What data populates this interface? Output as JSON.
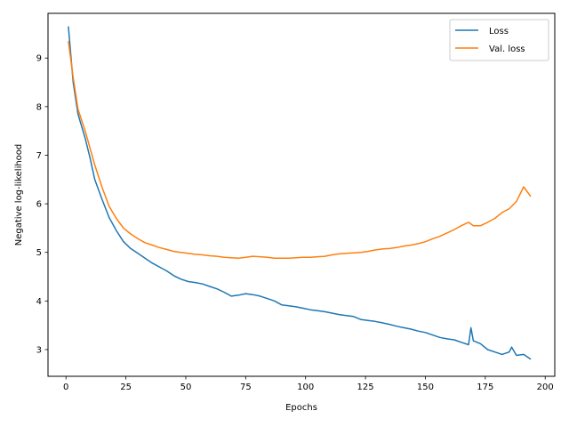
{
  "chart_data": {
    "type": "line",
    "title": "",
    "xlabel": "Epochs",
    "ylabel": "Negative log-likelihood",
    "xlim": [
      -7.5,
      204
    ],
    "ylim": [
      2.45,
      9.92
    ],
    "xticks": [
      0,
      25,
      50,
      75,
      100,
      125,
      150,
      175,
      200
    ],
    "yticks": [
      3,
      4,
      5,
      6,
      7,
      8,
      9
    ],
    "grid": false,
    "legend_position": "top-right",
    "series": [
      {
        "name": "Loss",
        "color": "#1f77b4",
        "x": [
          1,
          3,
          5,
          8,
          10,
          12,
          15,
          18,
          21,
          24,
          27,
          30,
          33,
          36,
          39,
          42,
          45,
          48,
          51,
          54,
          57,
          60,
          63,
          66,
          69,
          72,
          75,
          78,
          81,
          84,
          87,
          90,
          93,
          96,
          99,
          102,
          105,
          108,
          111,
          114,
          117,
          120,
          123,
          126,
          129,
          132,
          135,
          138,
          141,
          144,
          147,
          150,
          153,
          156,
          159,
          162,
          165,
          168,
          169,
          170,
          173,
          176,
          179,
          182,
          185,
          186,
          188,
          191,
          194
        ],
        "y": [
          9.65,
          8.5,
          7.85,
          7.35,
          6.95,
          6.5,
          6.1,
          5.72,
          5.45,
          5.22,
          5.08,
          4.98,
          4.88,
          4.78,
          4.7,
          4.62,
          4.52,
          4.45,
          4.4,
          4.38,
          4.35,
          4.3,
          4.25,
          4.18,
          4.1,
          4.12,
          4.15,
          4.13,
          4.1,
          4.05,
          4.0,
          3.92,
          3.9,
          3.88,
          3.85,
          3.82,
          3.8,
          3.78,
          3.75,
          3.72,
          3.7,
          3.68,
          3.62,
          3.6,
          3.58,
          3.55,
          3.52,
          3.48,
          3.45,
          3.42,
          3.38,
          3.35,
          3.3,
          3.25,
          3.22,
          3.2,
          3.15,
          3.1,
          3.45,
          3.18,
          3.12,
          3.0,
          2.95,
          2.9,
          2.95,
          3.05,
          2.88,
          2.9,
          2.8
        ]
      },
      {
        "name": "Val. loss",
        "color": "#ff7f0e",
        "x": [
          1,
          3,
          5,
          8,
          10,
          12,
          15,
          18,
          21,
          24,
          27,
          30,
          33,
          36,
          39,
          42,
          45,
          48,
          51,
          54,
          57,
          60,
          63,
          66,
          69,
          72,
          75,
          78,
          81,
          84,
          87,
          90,
          93,
          96,
          99,
          102,
          105,
          108,
          111,
          114,
          117,
          120,
          123,
          126,
          129,
          132,
          135,
          138,
          141,
          144,
          147,
          150,
          153,
          156,
          159,
          162,
          165,
          168,
          170,
          173,
          176,
          179,
          182,
          185,
          188,
          191,
          194
        ],
        "y": [
          9.35,
          8.6,
          7.95,
          7.5,
          7.15,
          6.8,
          6.35,
          5.95,
          5.7,
          5.5,
          5.38,
          5.28,
          5.2,
          5.15,
          5.1,
          5.06,
          5.02,
          5.0,
          4.98,
          4.96,
          4.95,
          4.93,
          4.92,
          4.9,
          4.89,
          4.88,
          4.9,
          4.92,
          4.91,
          4.9,
          4.88,
          4.88,
          4.88,
          4.89,
          4.9,
          4.9,
          4.91,
          4.92,
          4.95,
          4.97,
          4.98,
          4.99,
          5.0,
          5.02,
          5.05,
          5.07,
          5.08,
          5.1,
          5.13,
          5.15,
          5.18,
          5.22,
          5.28,
          5.33,
          5.4,
          5.47,
          5.55,
          5.62,
          5.55,
          5.55,
          5.62,
          5.7,
          5.82,
          5.9,
          6.05,
          6.35,
          6.15
        ]
      }
    ]
  }
}
